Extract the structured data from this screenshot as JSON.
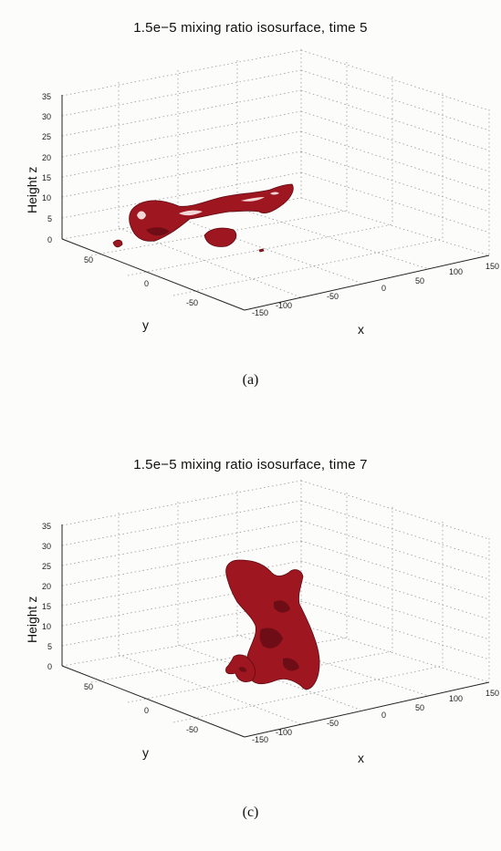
{
  "figure": {
    "panels": [
      {
        "id": "a",
        "title": "1.5e−5 mixing ratio isosurface, time 5",
        "caption": "(a)",
        "axes": {
          "z_label": "Height z",
          "y_label": "y",
          "x_label": "x",
          "z_ticks": [
            "0",
            "5",
            "10",
            "15",
            "20",
            "25",
            "30",
            "35"
          ],
          "y_ticks": [
            "50",
            "0",
            "-50"
          ],
          "x_ticks": [
            "-150",
            "-100",
            "-50",
            "0",
            "50",
            "100",
            "150"
          ]
        }
      },
      {
        "id": "c",
        "title": "1.5e−5 mixing ratio isosurface, time 7",
        "caption": "(c)",
        "axes": {
          "z_label": "Height z",
          "y_label": "y",
          "x_label": "x",
          "z_ticks": [
            "0",
            "5",
            "10",
            "15",
            "20",
            "25",
            "30",
            "35"
          ],
          "y_ticks": [
            "50",
            "0",
            "-50"
          ],
          "x_ticks": [
            "-150",
            "-100",
            "-50",
            "0",
            "50",
            "100",
            "150"
          ]
        }
      }
    ],
    "colors": {
      "isosurface": "#9e1620",
      "isosurface_shadow": "#6e0d15"
    }
  }
}
